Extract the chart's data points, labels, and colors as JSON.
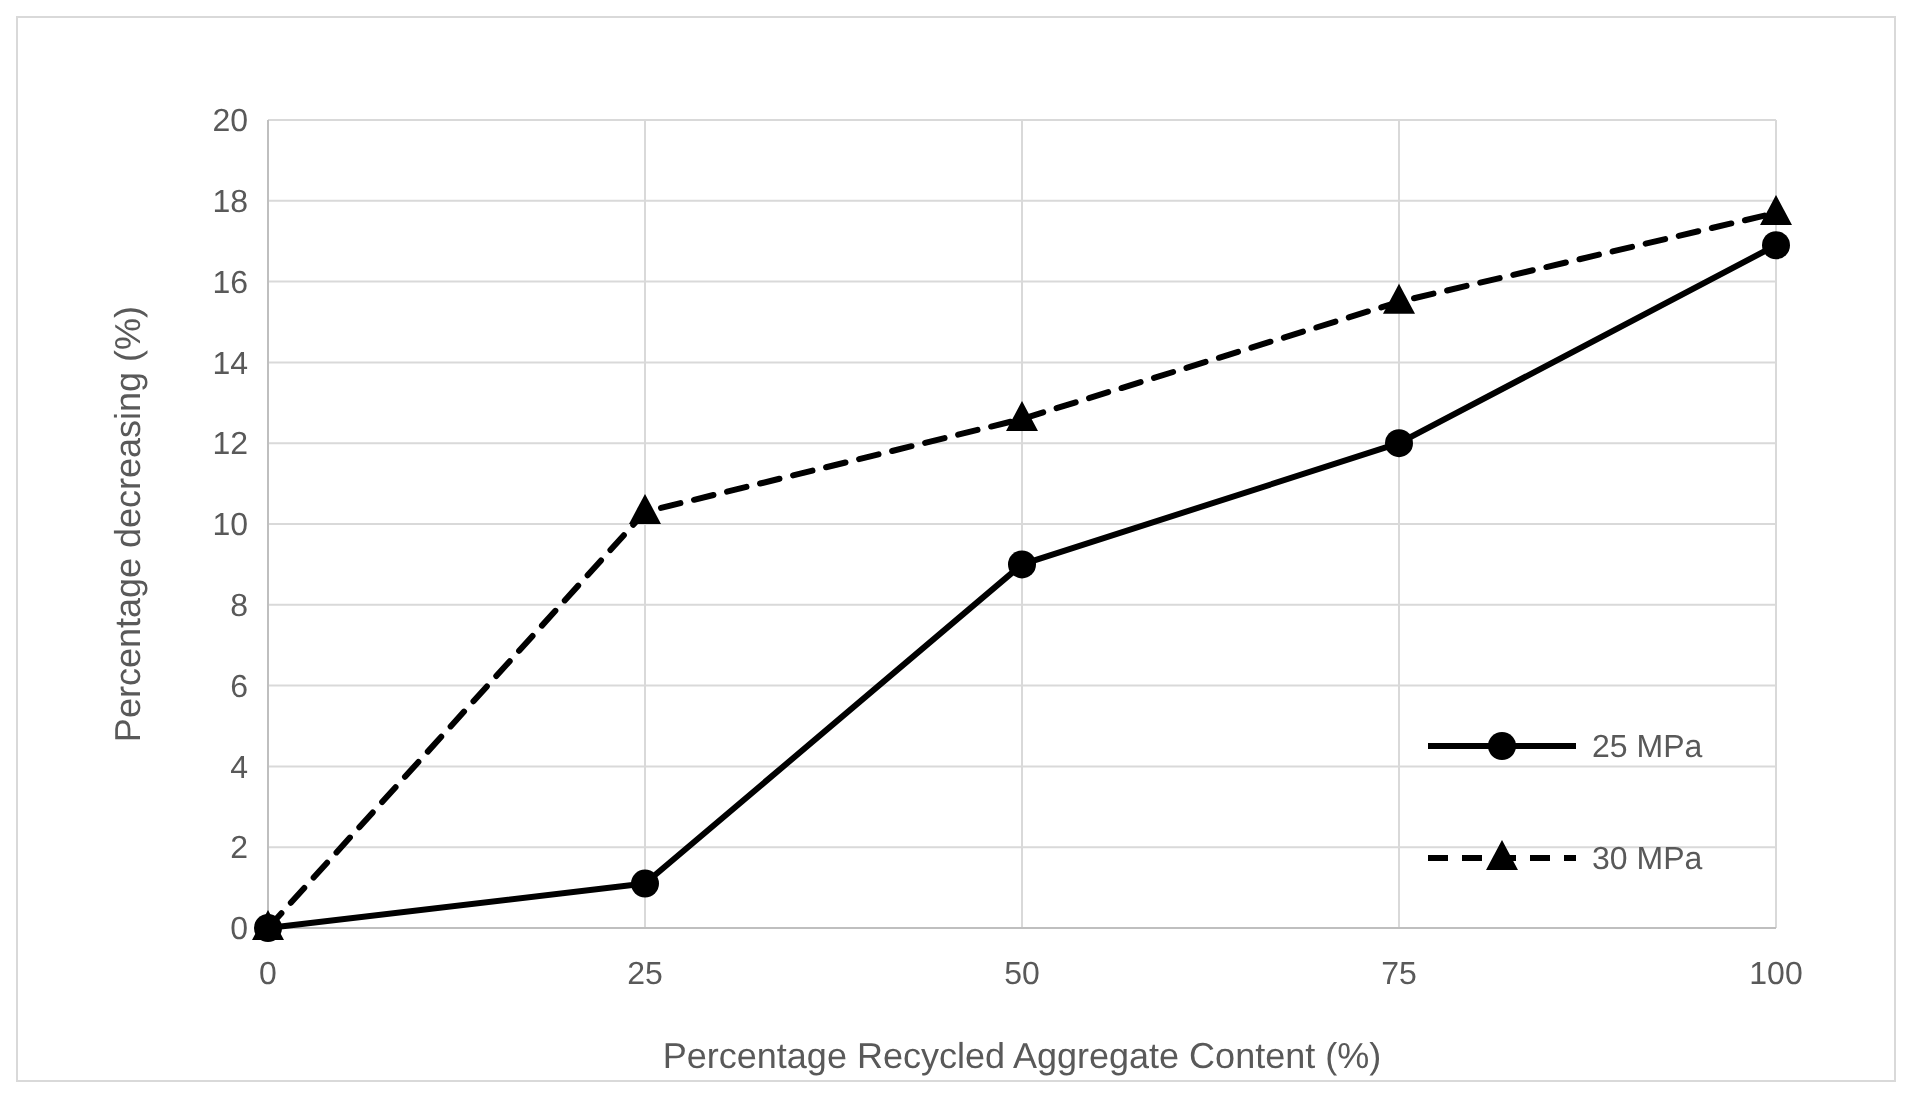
{
  "chart_data": {
    "type": "line",
    "xlabel": "Percentage Recycled Aggregate Content (%)",
    "ylabel": "Percentage decreasing (%)",
    "x": [
      0,
      25,
      50,
      75,
      100
    ],
    "xlim": [
      0,
      100
    ],
    "xticks": [
      0,
      25,
      50,
      75,
      100
    ],
    "ylim": [
      0,
      20
    ],
    "yticks": [
      0,
      2,
      4,
      6,
      8,
      10,
      12,
      14,
      16,
      18,
      20
    ],
    "grid": true,
    "legend": "bottom right",
    "series": [
      {
        "name": "25 MPa",
        "color": "#000000",
        "marker": "circle",
        "line_style": "solid",
        "values": [
          0,
          1.1,
          9.0,
          12.0,
          16.9
        ]
      },
      {
        "name": "30 MPa",
        "color": "#000000",
        "marker": "triangle",
        "line_style": "dashed",
        "values": [
          0,
          10.3,
          12.6,
          15.5,
          17.7
        ]
      }
    ]
  }
}
